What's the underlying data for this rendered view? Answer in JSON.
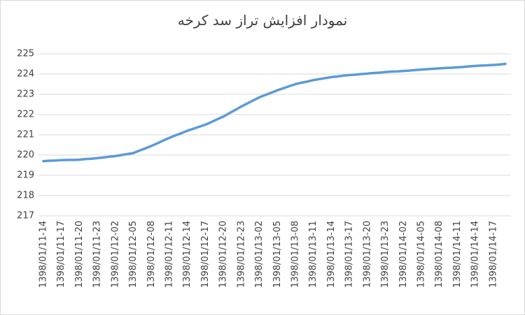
{
  "chart_data": {
    "type": "line",
    "title": "نمودار  افزایش  تراز سد کرخه",
    "categories": [
      "1398/01/11-14",
      null,
      null,
      "1398/01/11-17",
      null,
      null,
      "1398/01/11-20",
      null,
      null,
      "1398/01/11-23",
      null,
      null,
      "1398/01/12-02",
      null,
      null,
      "1398/01/12-05",
      null,
      null,
      "1398/01/12-08",
      null,
      null,
      "1398/01/12-11",
      null,
      null,
      "1398/01/12-14",
      null,
      null,
      "1398/01/12-17",
      null,
      null,
      "1398/01/12-20",
      null,
      null,
      "1398/01/12-23",
      null,
      null,
      "1398/01/13-02",
      null,
      null,
      "1398/01/13-05",
      null,
      null,
      "1398/01/13-08",
      null,
      null,
      "1398/01/13-11",
      null,
      null,
      "1398/01/13-14",
      null,
      null,
      "1398/01/13-17",
      null,
      null,
      "1398/01/13-20",
      null,
      null,
      "1398/01/13-23",
      null,
      null,
      "1398/01/14-02",
      null,
      null,
      "1398/01/14-05",
      null,
      null,
      "1398/01/14-08",
      null,
      null,
      "1398/01/14-11",
      null,
      null,
      "1398/01/14-14",
      null,
      null,
      "1398/01/14-17",
      null,
      null
    ],
    "values": [
      219.7,
      219.72,
      219.73,
      219.75,
      219.76,
      219.76,
      219.77,
      219.8,
      219.82,
      219.85,
      219.88,
      219.92,
      219.95,
      220.0,
      220.05,
      220.1,
      220.22,
      220.33,
      220.45,
      220.58,
      220.72,
      220.85,
      220.97,
      221.08,
      221.2,
      221.3,
      221.4,
      221.5,
      221.63,
      221.77,
      221.9,
      222.07,
      222.23,
      222.4,
      222.55,
      222.7,
      222.85,
      222.97,
      223.08,
      223.2,
      223.3,
      223.4,
      223.5,
      223.57,
      223.63,
      223.7,
      223.75,
      223.8,
      223.85,
      223.88,
      223.92,
      223.95,
      223.97,
      224.0,
      224.02,
      224.05,
      224.07,
      224.1,
      224.12,
      224.13,
      224.15,
      224.17,
      224.2,
      224.22,
      224.24,
      224.26,
      224.28,
      224.3,
      224.31,
      224.33,
      224.35,
      224.38,
      224.4,
      224.42,
      224.43,
      224.45,
      224.47,
      224.5
    ],
    "color": "#5b9bd5",
    "ylim": [
      217,
      225
    ],
    "yticks": [
      217,
      218,
      219,
      220,
      221,
      222,
      223,
      224,
      225
    ],
    "grid": true
  }
}
